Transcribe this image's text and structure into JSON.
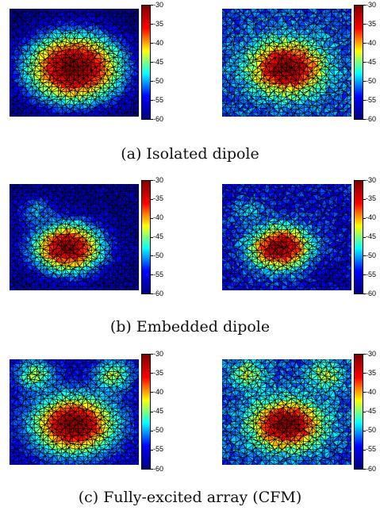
{
  "figure": {
    "colorbar_ticks": [
      "-30",
      "-35",
      "-40",
      "-45",
      "-50",
      "-55",
      "-60"
    ],
    "colorbar_range": [
      -60,
      -30
    ],
    "colormap": "jet",
    "colormap_stops": [
      "#00007f",
      "#0000ff",
      "#00ffff",
      "#ffff00",
      "#ff0000",
      "#7f0000"
    ],
    "mesh_color": "#000000",
    "panels": [
      {
        "caption": "(a) Isolated dipole",
        "plots": [
          {
            "hot_center": [
              0.5,
              0.55
            ],
            "spread": 0.55,
            "peak": -30,
            "floor": -60,
            "noise": 0.08,
            "lobes": []
          },
          {
            "hot_center": [
              0.5,
              0.55
            ],
            "spread": 0.38,
            "peak": -30,
            "floor": -52,
            "noise": 0.14,
            "lobes": []
          }
        ]
      },
      {
        "caption": "(b) Embedded dipole",
        "plots": [
          {
            "hot_center": [
              0.45,
              0.6
            ],
            "spread": 0.38,
            "peak": -31,
            "floor": -58,
            "noise": 0.1,
            "lobes": [
              [
                0.2,
                0.25,
                -50
              ]
            ]
          },
          {
            "hot_center": [
              0.45,
              0.6
            ],
            "spread": 0.32,
            "peak": -31,
            "floor": -54,
            "noise": 0.14,
            "lobes": [
              [
                0.2,
                0.25,
                -50
              ],
              [
                0.85,
                0.85,
                -56
              ]
            ]
          }
        ]
      },
      {
        "caption": "(c) Fully-excited array (CFM)",
        "plots": [
          {
            "hot_center": [
              0.5,
              0.62
            ],
            "spread": 0.42,
            "peak": -30,
            "floor": -55,
            "noise": 0.08,
            "lobes": [
              [
                0.2,
                0.15,
                -44
              ],
              [
                0.8,
                0.15,
                -44
              ]
            ]
          },
          {
            "hot_center": [
              0.5,
              0.62
            ],
            "spread": 0.36,
            "peak": -30,
            "floor": -52,
            "noise": 0.14,
            "lobes": [
              [
                0.2,
                0.15,
                -44
              ],
              [
                0.8,
                0.15,
                -44
              ]
            ]
          }
        ]
      }
    ]
  }
}
